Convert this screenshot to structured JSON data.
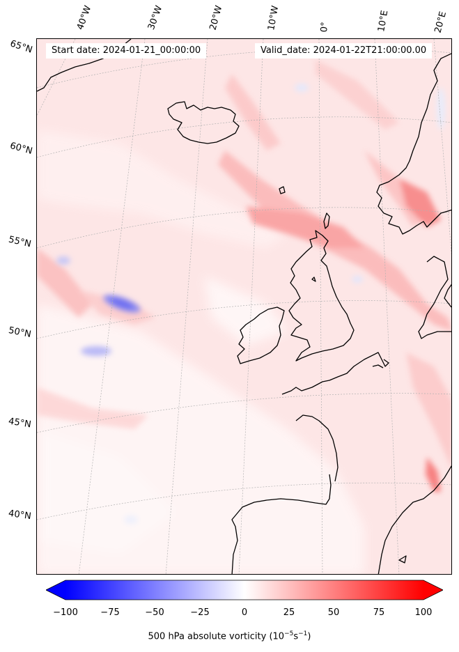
{
  "header": {
    "start_date": "Start date: 2024-01-21_00:00:00",
    "valid_date": "Valid_date: 2024-01-22T21:00:00.00"
  },
  "longitude_labels": [
    "40°W",
    "30°W",
    "20°W",
    "10°W",
    "0°",
    "10°E",
    "20°E"
  ],
  "latitude_labels": [
    "65°N",
    "60°N",
    "55°N",
    "50°N",
    "45°N",
    "40°N"
  ],
  "colorbar": {
    "min": -100,
    "max": 100,
    "ticks": [
      "−100",
      "−75",
      "−50",
      "−25",
      "0",
      "25",
      "50",
      "75",
      "100"
    ],
    "label_main": "500 hPa absolute vorticity (10",
    "label_exp1": "−5",
    "label_mid": "s",
    "label_exp2": "−1",
    "label_end": ")",
    "colors": {
      "low": "#0000ff",
      "mid": "#ffffff",
      "high": "#ff0000"
    },
    "extend": "both"
  },
  "map": {
    "land_outline_color": "#000000",
    "gridline_color": "#b0b0b0",
    "background_field": "#fde8e8"
  }
}
